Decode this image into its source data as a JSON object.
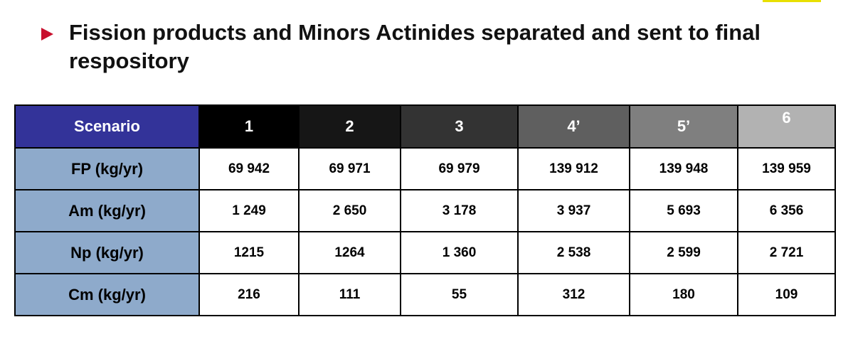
{
  "heading": {
    "text": "Fission products and Minors Actinides separated and sent to final respository",
    "bullet_color": "#c8102e"
  },
  "table": {
    "header_label": "Scenario",
    "columns": [
      {
        "label": "1",
        "bg": "#000000"
      },
      {
        "label": "2",
        "bg": "#161616"
      },
      {
        "label": "3",
        "bg": "#333333"
      },
      {
        "label": "4’",
        "bg": "#5f5f5f"
      },
      {
        "label": "5’",
        "bg": "#7f7f7f"
      },
      {
        "label": "6",
        "bg": "#b2b2b2"
      }
    ],
    "rows": [
      {
        "label": "FP (kg/yr)",
        "values": [
          "69 942",
          "69 971",
          "69 979",
          "139 912",
          "139 948",
          "139 959"
        ]
      },
      {
        "label": "Am (kg/yr)",
        "values": [
          "1 249",
          "2 650",
          "3 178",
          "3 937",
          "5 693",
          "6 356"
        ]
      },
      {
        "label": "Np (kg/yr)",
        "values": [
          "1215",
          "1264",
          "1 360",
          "2 538",
          "2 599",
          "2 721"
        ]
      },
      {
        "label": "Cm (kg/yr)",
        "values": [
          "216",
          "111",
          "55",
          "312",
          "180",
          "109"
        ]
      }
    ],
    "colors": {
      "header_label_bg": "#333399",
      "row_label_bg": "#8eaacb"
    }
  }
}
